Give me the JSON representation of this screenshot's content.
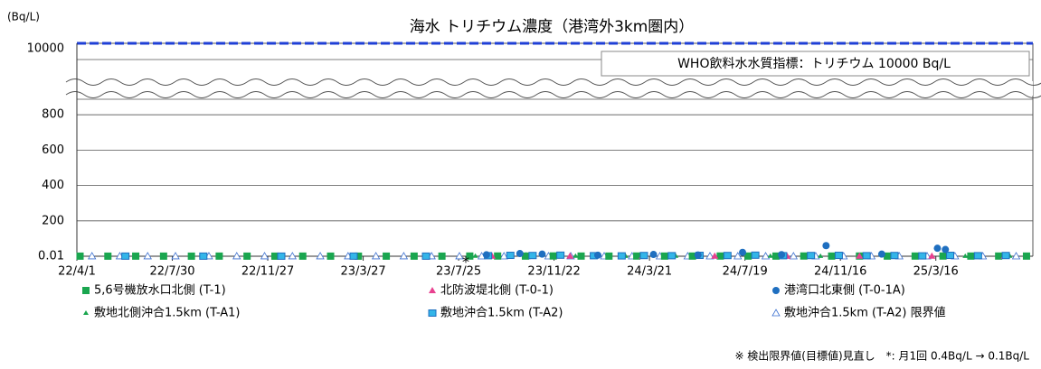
{
  "chart_data": {
    "type": "scatter",
    "title": "海水 トリチウム濃度（港湾外3km圏内）",
    "y_unit": "(Bq/L)",
    "xlim": [
      "2022-04-01",
      "2025-07-16"
    ],
    "xticks": [
      {
        "value": "2022-04-01",
        "label": "22/4/1"
      },
      {
        "value": "2022-07-30",
        "label": "22/7/30"
      },
      {
        "value": "2022-11-27",
        "label": "22/11/27"
      },
      {
        "value": "2023-03-27",
        "label": "23/3/27"
      },
      {
        "value": "2023-07-25",
        "label": "23/7/25"
      },
      {
        "value": "2023-11-22",
        "label": "23/11/22"
      },
      {
        "value": "2024-03-21",
        "label": "24/3/21"
      },
      {
        "value": "2024-07-19",
        "label": "24/7/19"
      },
      {
        "value": "2024-11-16",
        "label": "24/11/16"
      },
      {
        "value": "2025-03-16",
        "label": "25/3/16"
      }
    ],
    "ylim": [
      0,
      1000
    ],
    "yticks": [
      0.01,
      200,
      400,
      600,
      800
    ],
    "axis_break": true,
    "grid": true,
    "reference_line": {
      "value": 10000,
      "label": "WHO飲料水水質指標：トリチウム 10000 Bq/L",
      "color": "#1f3fd6"
    },
    "annotation": "*",
    "footnote": "※ 検出限界値(目標値)見直し　*: 月1回 0.4Bq/L → 0.1Bq/L",
    "series": [
      {
        "name": "5,6号機放水口北側 (T-1)",
        "color": "#1aa64f",
        "marker": "square",
        "x": [
          "2022-04-05",
          "2022-05-10",
          "2022-06-14",
          "2022-07-19",
          "2022-08-23",
          "2022-09-27",
          "2022-11-01",
          "2022-12-06",
          "2023-01-10",
          "2023-02-14",
          "2023-03-21",
          "2023-04-25",
          "2023-05-30",
          "2023-07-04",
          "2023-08-08",
          "2023-09-12",
          "2023-10-17",
          "2023-11-21",
          "2023-12-26",
          "2024-01-30",
          "2024-03-05",
          "2024-04-09",
          "2024-05-14",
          "2024-06-18",
          "2024-07-23",
          "2024-08-27",
          "2024-10-01",
          "2024-11-05",
          "2024-12-10",
          "2025-01-14",
          "2025-02-18",
          "2025-03-25",
          "2025-04-29",
          "2025-06-03",
          "2025-07-08"
        ],
        "values": [
          0.5,
          0.4,
          0.6,
          0.5,
          0.4,
          0.7,
          0.5,
          0.4,
          0.6,
          0.5,
          0.4,
          0.5,
          0.6,
          0.5,
          1,
          1.2,
          0.8,
          1.5,
          0.9,
          0.7,
          1.1,
          0.8,
          0.9,
          1.2,
          1,
          0.8,
          1.3,
          0.9,
          1.1,
          0.8,
          1,
          1.2,
          0.9,
          1,
          0.8
        ]
      },
      {
        "name": "北防波堤北側 (T-0-1)",
        "color": "#e8418f",
        "marker": "triangle",
        "x": [
          "2023-09-05",
          "2023-12-12",
          "2024-03-12",
          "2024-06-11",
          "2024-09-10",
          "2024-12-10",
          "2025-03-11",
          "2025-06-10"
        ],
        "values": [
          1.5,
          1.2,
          0.9,
          1.1,
          0.8,
          1.3,
          1,
          0.9
        ]
      },
      {
        "name": "港湾口北東側 (T-0-1A)",
        "color": "#1f6fc0",
        "marker": "circle",
        "x": [
          "2023-08-29",
          "2023-10-10",
          "2023-11-07",
          "2024-01-16",
          "2024-03-26",
          "2024-05-21",
          "2024-07-16",
          "2024-09-03",
          "2024-10-29",
          "2025-01-07",
          "2025-03-18",
          "2025-03-28"
        ],
        "values": [
          8,
          15,
          12,
          6,
          10,
          7,
          22,
          9,
          60,
          12,
          45,
          38
        ]
      },
      {
        "name": "敷地北側沖合1.5km (T-A1)",
        "color": "#1aa64f",
        "marker": "triangle-small",
        "x": [
          "2023-08-15",
          "2023-10-24",
          "2023-12-19",
          "2024-02-20",
          "2024-04-23",
          "2024-06-25",
          "2024-08-20",
          "2024-10-22",
          "2024-12-17",
          "2025-02-18",
          "2025-04-22",
          "2025-06-17"
        ],
        "values": [
          1,
          0.8,
          1.2,
          0.9,
          1.1,
          0.7,
          1,
          0.9,
          0.8,
          1.1,
          0.9,
          1
        ]
      },
      {
        "name": "敷地沖合1.5km (T-A2)",
        "color": "#33b5e8",
        "marker": "square-outline",
        "x": [
          "2022-06-01",
          "2022-09-07",
          "2022-12-14",
          "2023-03-15",
          "2023-06-14",
          "2023-08-31",
          "2023-09-28",
          "2023-10-26",
          "2023-11-30",
          "2024-01-11",
          "2024-02-15",
          "2024-03-14",
          "2024-04-18",
          "2024-05-23",
          "2024-06-27",
          "2024-08-01",
          "2024-09-05",
          "2024-10-10",
          "2024-11-14",
          "2024-12-19",
          "2025-01-23",
          "2025-02-27",
          "2025-04-03",
          "2025-05-08",
          "2025-06-12"
        ],
        "values": [
          0.6,
          0.5,
          0.5,
          0.6,
          0.5,
          3,
          5,
          4,
          6,
          3,
          2,
          4,
          3,
          5,
          4,
          6,
          3,
          4,
          5,
          3,
          4,
          2,
          5,
          3,
          4
        ]
      },
      {
        "name": "敷地沖合1.5km (T-A2) 限界値",
        "color": "#3a6fd0",
        "marker": "triangle-open",
        "x": [
          "2022-04-20",
          "2022-05-25",
          "2022-06-29",
          "2022-08-03",
          "2022-09-14",
          "2022-10-19",
          "2022-11-23",
          "2022-12-28",
          "2023-02-01",
          "2023-03-08",
          "2023-04-12",
          "2023-05-17",
          "2023-06-21",
          "2023-07-26",
          "2023-08-23",
          "2023-09-20",
          "2023-10-18",
          "2023-11-15",
          "2023-12-13",
          "2024-01-24",
          "2024-02-28",
          "2024-04-03",
          "2024-05-08",
          "2024-06-05",
          "2024-07-10",
          "2024-08-14",
          "2024-09-18",
          "2024-10-16",
          "2024-11-20",
          "2024-12-25",
          "2025-01-29",
          "2025-03-05",
          "2025-04-09",
          "2025-05-14",
          "2025-06-25"
        ],
        "values": [
          0.4,
          0.4,
          0.4,
          0.4,
          0.4,
          0.4,
          0.4,
          0.4,
          0.4,
          0.4,
          0.4,
          0.4,
          0.4,
          0.4,
          0.1,
          0.1,
          0.1,
          0.1,
          0.1,
          0.1,
          0.1,
          0.1,
          0.1,
          0.1,
          0.1,
          0.1,
          0.1,
          0.1,
          0.1,
          0.1,
          0.1,
          0.1,
          0.1,
          0.1,
          0.1
        ]
      }
    ]
  }
}
